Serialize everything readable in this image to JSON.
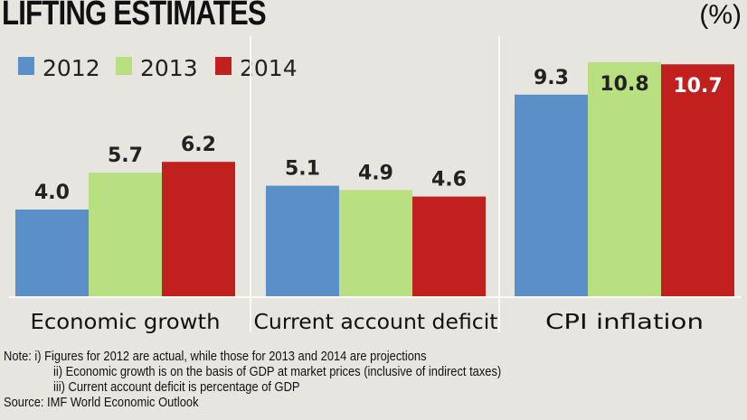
{
  "chart_data": {
    "type": "bar",
    "title": "LIFTING ESTIMATES",
    "unit_label": "(%)",
    "categories": [
      "Economic growth",
      "Current account deficit",
      "CPI inflation"
    ],
    "series": [
      {
        "name": "2012",
        "color": "#5b8fc7",
        "values": [
          4.0,
          5.1,
          9.3
        ]
      },
      {
        "name": "2013",
        "color": "#b8df80",
        "values": [
          5.7,
          4.9,
          10.8
        ]
      },
      {
        "name": "2014",
        "color": "#c2201f",
        "values": [
          6.2,
          4.6,
          10.7
        ]
      }
    ],
    "value_labels": [
      [
        "4.0",
        "5.1",
        "9.3"
      ],
      [
        "5.7",
        "4.9",
        "10.8"
      ],
      [
        "6.2",
        "4.6",
        "10.7"
      ]
    ],
    "ylim": [
      0,
      11
    ],
    "legend": "top-left",
    "grid": false
  },
  "notes": {
    "line1": "Note: i) Figures for 2012 are actual, while those for 2013 and 2014 are projections",
    "line2": "ii) Economic growth is on the basis of GDP at market prices (inclusive of indirect taxes)",
    "line3": "iii) Current account deficit is percentage of GDP",
    "source": "Source: IMF World Economic Outlook"
  }
}
